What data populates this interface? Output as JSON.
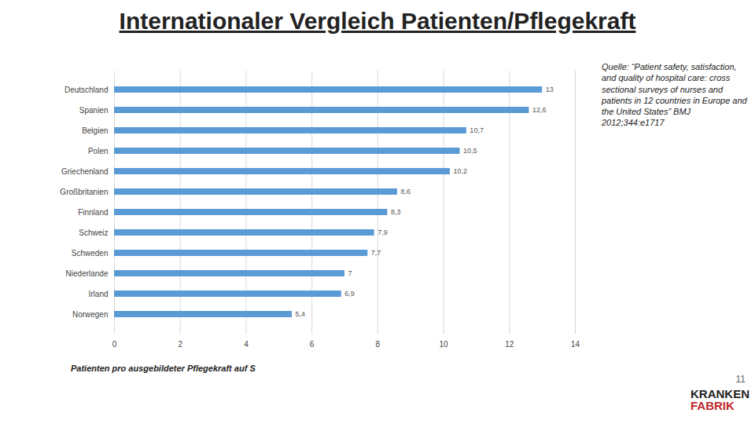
{
  "chart_data": {
    "type": "bar",
    "orientation": "horizontal",
    "title": "Internationaler Vergleich Patienten/Pflegekraft",
    "x_label": "Patienten pro ausgebildeter Pflegekraft auf S",
    "categories": [
      "Deutschland",
      "Spanien",
      "Belgien",
      "Polen",
      "Griechenland",
      "Großbritanien",
      "Finnland",
      "Schweiz",
      "Schweden",
      "Niederlande",
      "Irland",
      "Norwegen"
    ],
    "values": [
      13,
      12.6,
      10.7,
      10.5,
      10.2,
      8.6,
      8.3,
      7.9,
      7.7,
      7,
      6.9,
      5.4
    ],
    "value_labels": [
      "13",
      "12,6",
      "10,7",
      "10,5",
      "10,2",
      "8,6",
      "8,3",
      "7,9",
      "7,7",
      "7",
      "6,9",
      "5,4"
    ],
    "data_labels": true,
    "color": "#5b9bd5",
    "xlim": [
      0,
      14
    ],
    "xticks": [
      0,
      2,
      4,
      6,
      8,
      10,
      12,
      14
    ],
    "grid": true,
    "annotations": {
      "source": "Quelle: “Patient safety, satisfaction, and quality of hospital care: cross sectional surveys of nurses and patients in 12 countries in Europe and the United States” BMJ 2012;344:e1717",
      "page_number": "11",
      "logo": [
        "KRANKEN",
        "FABRIK"
      ]
    }
  }
}
